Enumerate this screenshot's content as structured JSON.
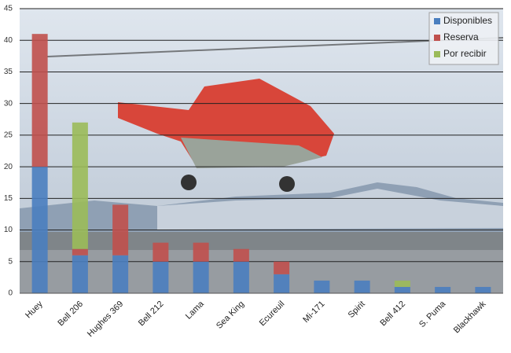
{
  "chart_data": {
    "type": "stacked_bar",
    "categories": [
      "Huey",
      "Bell 206",
      "Hughes 369",
      "Bell 212",
      "Lama",
      "Sea King",
      "Ecureuil",
      "Mi-171",
      "Spirit",
      "Bell 412",
      "S. Puma",
      "Blackhawk"
    ],
    "series": [
      {
        "name": "Disponibles",
        "color": "#4a7ebf",
        "values": [
          20,
          6,
          6,
          5,
          5,
          5,
          3,
          2,
          2,
          1,
          1,
          1
        ]
      },
      {
        "name": "Reserva",
        "color": "#c0504d",
        "values": [
          21,
          1,
          8,
          3,
          3,
          2,
          2,
          0,
          0,
          0,
          0,
          0
        ]
      },
      {
        "name": "Por recibir",
        "color": "#9bbb59",
        "values": [
          0,
          20,
          0,
          0,
          0,
          0,
          0,
          0,
          0,
          1,
          0,
          0
        ]
      }
    ],
    "ylim": [
      0,
      45
    ],
    "yticks": [
      0,
      5,
      10,
      15,
      20,
      25,
      30,
      35,
      40,
      45
    ],
    "grid": true,
    "legend": "top-right"
  }
}
